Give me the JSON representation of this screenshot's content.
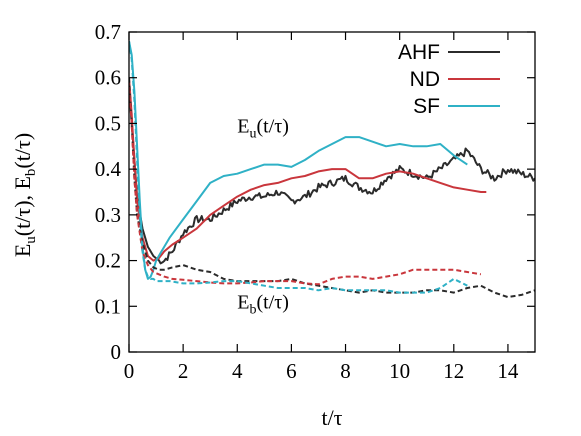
{
  "chart_data": {
    "type": "line",
    "xlabel": "t/τ",
    "ylabel": "E_u(t/τ), E_b(t/τ)",
    "xlim": [
      0,
      15
    ],
    "ylim": [
      0,
      0.7
    ],
    "xticks": [
      "0",
      "2",
      "4",
      "6",
      "8",
      "10",
      "12",
      "14"
    ],
    "yticks": [
      "0",
      "0.1",
      "0.2",
      "0.3",
      "0.4",
      "0.5",
      "0.6",
      "0.7"
    ],
    "grid": false,
    "legend_position": "top-right",
    "legend": [
      "AHF",
      "ND",
      "SF"
    ],
    "annotations": [
      {
        "base": "E",
        "sub": "u",
        "rest": "(t/τ)",
        "x": 4.0,
        "y": 0.48
      },
      {
        "base": "E",
        "sub": "b",
        "rest": "(t/τ)",
        "x": 4.0,
        "y": 0.095
      }
    ],
    "colors": {
      "AHF": "#2b2b2b",
      "ND": "#c9363c",
      "SF": "#2fb1c6"
    },
    "series": [
      {
        "name": "AHF",
        "quantity": "E_u",
        "style": "solid",
        "noise": 0.008,
        "x": [
          0,
          0.1,
          0.2,
          0.3,
          0.5,
          0.7,
          0.9,
          1.1,
          1.3,
          1.6,
          2.0,
          2.5,
          3.0,
          3.5,
          4.0,
          4.5,
          5.0,
          5.5,
          6.0,
          6.5,
          7.0,
          7.5,
          8.0,
          8.5,
          9.0,
          9.5,
          10.0,
          10.5,
          11.0,
          11.5,
          12.0,
          12.5,
          13.0,
          13.5,
          14.0,
          14.5,
          15.0
        ],
        "y": [
          0.58,
          0.5,
          0.42,
          0.34,
          0.27,
          0.23,
          0.21,
          0.2,
          0.2,
          0.22,
          0.26,
          0.29,
          0.29,
          0.31,
          0.33,
          0.34,
          0.34,
          0.35,
          0.33,
          0.34,
          0.36,
          0.37,
          0.38,
          0.36,
          0.35,
          0.38,
          0.4,
          0.39,
          0.38,
          0.4,
          0.42,
          0.44,
          0.4,
          0.38,
          0.4,
          0.39,
          0.38
        ]
      },
      {
        "name": "ND",
        "quantity": "E_u",
        "style": "solid",
        "noise": 0,
        "x": [
          0,
          0.1,
          0.2,
          0.3,
          0.5,
          0.7,
          0.9,
          1.1,
          1.3,
          1.6,
          2.0,
          2.5,
          3.0,
          3.5,
          4.0,
          4.5,
          5.0,
          5.5,
          6.0,
          6.5,
          7.0,
          7.5,
          8.0,
          8.5,
          9.0,
          9.5,
          10.0,
          10.5,
          11.0,
          11.5,
          12.0,
          12.5,
          13.0,
          13.2
        ],
        "y": [
          0.6,
          0.52,
          0.42,
          0.33,
          0.25,
          0.21,
          0.2,
          0.205,
          0.22,
          0.235,
          0.25,
          0.27,
          0.3,
          0.32,
          0.34,
          0.355,
          0.365,
          0.37,
          0.38,
          0.385,
          0.395,
          0.4,
          0.4,
          0.38,
          0.38,
          0.39,
          0.395,
          0.39,
          0.38,
          0.37,
          0.36,
          0.355,
          0.35,
          0.35
        ]
      },
      {
        "name": "SF",
        "quantity": "E_u",
        "style": "solid",
        "noise": 0,
        "x": [
          0,
          0.1,
          0.2,
          0.3,
          0.4,
          0.5,
          0.6,
          0.7,
          0.8,
          0.9,
          1.0,
          1.2,
          1.5,
          2.0,
          2.5,
          3.0,
          3.5,
          4.0,
          4.5,
          5.0,
          5.5,
          6.0,
          6.5,
          7.0,
          7.5,
          8.0,
          8.5,
          9.0,
          9.5,
          10.0,
          10.5,
          11.0,
          11.5,
          12.0,
          12.5
        ],
        "y": [
          0.68,
          0.65,
          0.57,
          0.45,
          0.33,
          0.23,
          0.18,
          0.16,
          0.165,
          0.18,
          0.2,
          0.22,
          0.25,
          0.29,
          0.33,
          0.37,
          0.385,
          0.39,
          0.4,
          0.41,
          0.41,
          0.405,
          0.42,
          0.44,
          0.455,
          0.47,
          0.47,
          0.46,
          0.45,
          0.455,
          0.45,
          0.45,
          0.455,
          0.43,
          0.41
        ]
      },
      {
        "name": "AHF",
        "quantity": "E_b",
        "style": "dashed",
        "noise": 0,
        "x": [
          0,
          0.1,
          0.2,
          0.3,
          0.5,
          0.7,
          0.9,
          1.1,
          1.3,
          1.6,
          2.0,
          2.5,
          3.0,
          3.5,
          4.0,
          4.5,
          5.0,
          5.5,
          6.0,
          6.5,
          7.0,
          7.5,
          8.0,
          8.5,
          9.0,
          9.5,
          10.0,
          10.5,
          11.0,
          11.5,
          12.0,
          12.5,
          13.0,
          13.5,
          14.0,
          14.5,
          15.0
        ],
        "y": [
          0.6,
          0.5,
          0.38,
          0.3,
          0.24,
          0.2,
          0.185,
          0.18,
          0.18,
          0.185,
          0.19,
          0.18,
          0.175,
          0.16,
          0.155,
          0.155,
          0.155,
          0.155,
          0.16,
          0.15,
          0.145,
          0.14,
          0.135,
          0.13,
          0.135,
          0.13,
          0.13,
          0.13,
          0.135,
          0.135,
          0.13,
          0.14,
          0.145,
          0.13,
          0.12,
          0.125,
          0.135
        ]
      },
      {
        "name": "ND",
        "quantity": "E_b",
        "style": "dashed",
        "noise": 0,
        "x": [
          0,
          0.1,
          0.2,
          0.3,
          0.5,
          0.7,
          0.9,
          1.1,
          1.3,
          1.6,
          2.0,
          2.5,
          3.0,
          3.5,
          4.0,
          4.5,
          5.0,
          5.5,
          6.0,
          6.5,
          7.0,
          7.5,
          8.0,
          8.5,
          9.0,
          9.5,
          10.0,
          10.5,
          11.0,
          11.5,
          12.0,
          12.5,
          13.0
        ],
        "y": [
          0.58,
          0.5,
          0.38,
          0.3,
          0.22,
          0.19,
          0.175,
          0.17,
          0.165,
          0.16,
          0.158,
          0.155,
          0.152,
          0.15,
          0.15,
          0.152,
          0.155,
          0.155,
          0.155,
          0.15,
          0.148,
          0.16,
          0.165,
          0.165,
          0.16,
          0.165,
          0.17,
          0.18,
          0.18,
          0.18,
          0.18,
          0.175,
          0.17
        ]
      },
      {
        "name": "SF",
        "quantity": "E_b",
        "style": "dashed",
        "noise": 0,
        "x": [
          0,
          0.1,
          0.2,
          0.3,
          0.4,
          0.5,
          0.6,
          0.7,
          0.8,
          0.9,
          1.0,
          1.2,
          1.5,
          2.0,
          2.5,
          3.0,
          3.5,
          4.0,
          4.5,
          5.0,
          5.5,
          6.0,
          6.5,
          7.0,
          7.5,
          8.0,
          8.5,
          9.0,
          9.5,
          10.0,
          10.5,
          11.0,
          11.5,
          12.0,
          12.5
        ],
        "y": [
          0.68,
          0.64,
          0.55,
          0.42,
          0.3,
          0.22,
          0.18,
          0.165,
          0.16,
          0.16,
          0.155,
          0.155,
          0.155,
          0.15,
          0.15,
          0.152,
          0.155,
          0.155,
          0.15,
          0.145,
          0.14,
          0.14,
          0.14,
          0.135,
          0.14,
          0.135,
          0.135,
          0.135,
          0.135,
          0.13,
          0.13,
          0.13,
          0.14,
          0.16,
          0.145
        ]
      }
    ]
  }
}
